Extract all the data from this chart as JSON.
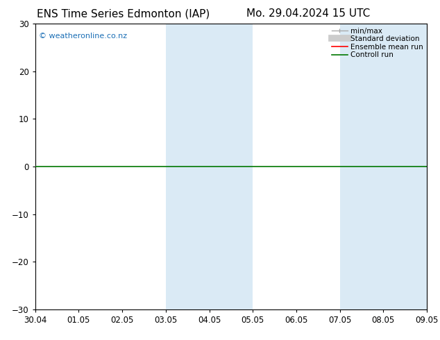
{
  "title_left": "ENS Time Series Edmonton (IAP)",
  "title_right": "Mo. 29.04.2024 15 UTC",
  "watermark": "© weatheronline.co.nz",
  "ylim": [
    -30,
    30
  ],
  "yticks": [
    -30,
    -20,
    -10,
    0,
    10,
    20,
    30
  ],
  "xtick_labels": [
    "30.04",
    "01.05",
    "02.05",
    "03.05",
    "04.05",
    "05.05",
    "06.05",
    "07.05",
    "08.05",
    "09.05"
  ],
  "shaded_bands": [
    {
      "xmin": 3.0,
      "xmax": 4.0
    },
    {
      "xmin": 4.0,
      "xmax": 5.0
    },
    {
      "xmin": 7.0,
      "xmax": 8.0
    },
    {
      "xmin": 8.0,
      "xmax": 9.0
    }
  ],
  "shade_color": "#daeaf5",
  "controll_run_color": "#007700",
  "controll_run_lw": 1.2,
  "background_color": "#ffffff",
  "legend_items": [
    {
      "label": "min/max",
      "color": "#aaaaaa",
      "lw": 1.0,
      "marker": true
    },
    {
      "label": "Standard deviation",
      "color": "#cccccc",
      "lw": 7,
      "marker": false
    },
    {
      "label": "Ensemble mean run",
      "color": "#ff0000",
      "lw": 1.2,
      "marker": false
    },
    {
      "label": "Controll run",
      "color": "#007700",
      "lw": 1.2,
      "marker": false
    }
  ],
  "title_fontsize": 11,
  "tick_fontsize": 8.5,
  "legend_fontsize": 7.5,
  "watermark_fontsize": 8,
  "watermark_color": "#1a6eb5",
  "spine_color": "#000000",
  "spine_lw": 0.8
}
